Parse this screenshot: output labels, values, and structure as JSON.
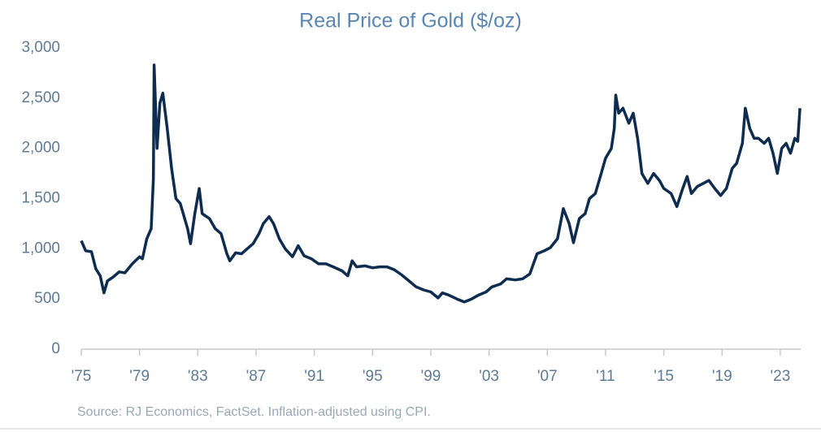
{
  "chart_data": {
    "type": "line",
    "title": "Real Price of Gold ($/oz)",
    "source": "Source: RJ Economics, FactSet. Inflation-adjusted using CPI.",
    "x": [
      1975.0,
      1975.3,
      1975.7,
      1976.0,
      1976.3,
      1976.56,
      1976.8,
      1977.2,
      1977.6,
      1978.0,
      1978.5,
      1979.0,
      1979.2,
      1979.5,
      1979.8,
      1979.95,
      1980.0,
      1980.2,
      1980.4,
      1980.6,
      1980.9,
      1981.2,
      1981.5,
      1981.8,
      1982.3,
      1982.5,
      1982.8,
      1983.1,
      1983.3,
      1983.8,
      1984.2,
      1984.6,
      1985.0,
      1985.2,
      1985.6,
      1986.0,
      1986.4,
      1986.8,
      1987.2,
      1987.5,
      1987.9,
      1988.2,
      1988.6,
      1989.0,
      1989.5,
      1989.9,
      1990.3,
      1990.8,
      1991.3,
      1991.8,
      1992.3,
      1992.9,
      1993.3,
      1993.6,
      1993.9,
      1994.5,
      1995.0,
      1995.5,
      1996.0,
      1996.5,
      1997.0,
      1997.5,
      1998.0,
      1998.5,
      1999.0,
      1999.5,
      1999.8,
      2000.2,
      2000.8,
      2001.3,
      2001.8,
      2002.3,
      2002.8,
      2003.2,
      2003.8,
      2004.2,
      2004.8,
      2005.3,
      2005.8,
      2006.3,
      2006.8,
      2007.2,
      2007.7,
      2008.1,
      2008.5,
      2008.8,
      2009.2,
      2009.6,
      2009.9,
      2010.3,
      2010.7,
      2011.0,
      2011.4,
      2011.6,
      2011.7,
      2011.9,
      2012.2,
      2012.6,
      2012.9,
      2013.2,
      2013.5,
      2013.7,
      2013.9,
      2014.3,
      2014.7,
      2015.0,
      2015.5,
      2015.9,
      2016.3,
      2016.6,
      2016.9,
      2017.3,
      2017.7,
      2018.1,
      2018.5,
      2018.9,
      2019.3,
      2019.7,
      2020.0,
      2020.4,
      2020.6,
      2020.9,
      2021.2,
      2021.5,
      2021.9,
      2022.2,
      2022.5,
      2022.8,
      2023.1,
      2023.4,
      2023.7,
      2024.0,
      2024.2,
      2024.35
    ],
    "series": [
      {
        "name": "Real Price of Gold",
        "color": "#0d2c4f",
        "values": [
          1080,
          980,
          970,
          800,
          730,
          560,
          680,
          720,
          770,
          760,
          850,
          920,
          900,
          1100,
          1200,
          1700,
          2830,
          2000,
          2450,
          2550,
          2200,
          1800,
          1500,
          1450,
          1200,
          1050,
          1350,
          1600,
          1350,
          1300,
          1200,
          1150,
          950,
          880,
          960,
          950,
          1000,
          1050,
          1150,
          1250,
          1320,
          1250,
          1100,
          1000,
          920,
          1030,
          930,
          900,
          850,
          850,
          820,
          780,
          730,
          880,
          820,
          830,
          810,
          820,
          820,
          790,
          740,
          680,
          620,
          590,
          570,
          510,
          560,
          540,
          500,
          470,
          500,
          540,
          570,
          620,
          650,
          700,
          690,
          700,
          750,
          950,
          980,
          1010,
          1100,
          1400,
          1250,
          1060,
          1300,
          1350,
          1500,
          1550,
          1750,
          1900,
          2000,
          2200,
          2530,
          2350,
          2400,
          2250,
          2350,
          2100,
          1750,
          1700,
          1650,
          1750,
          1680,
          1600,
          1550,
          1420,
          1600,
          1720,
          1550,
          1620,
          1650,
          1680,
          1600,
          1530,
          1600,
          1800,
          1850,
          2050,
          2400,
          2200,
          2100,
          2100,
          2050,
          2100,
          1950,
          1750,
          2000,
          2050,
          1950,
          2100,
          2070,
          2400
        ]
      }
    ],
    "xlim": [
      1975,
      2024.4
    ],
    "xticks": [
      {
        "value": 1975,
        "label": "'75"
      },
      {
        "value": 1979,
        "label": "'79"
      },
      {
        "value": 1983,
        "label": "'83"
      },
      {
        "value": 1987,
        "label": "'87"
      },
      {
        "value": 1991,
        "label": "'91"
      },
      {
        "value": 1995,
        "label": "'95"
      },
      {
        "value": 1999,
        "label": "'99"
      },
      {
        "value": 2003,
        "label": "'03"
      },
      {
        "value": 2007,
        "label": "'07"
      },
      {
        "value": 2011,
        "label": "'11"
      },
      {
        "value": 2015,
        "label": "'15"
      },
      {
        "value": 2019,
        "label": "'19"
      },
      {
        "value": 2023,
        "label": "'23"
      }
    ],
    "ylim": [
      0,
      3000
    ],
    "yticks": [
      0,
      500,
      {
        "value": 1000,
        "label": "1,000"
      },
      {
        "value": 1500,
        "label": "1,500"
      },
      {
        "value": 2000,
        "label": "2,000"
      },
      {
        "value": 2500,
        "label": "2,500"
      },
      {
        "value": 3000,
        "label": "3,000"
      }
    ]
  }
}
